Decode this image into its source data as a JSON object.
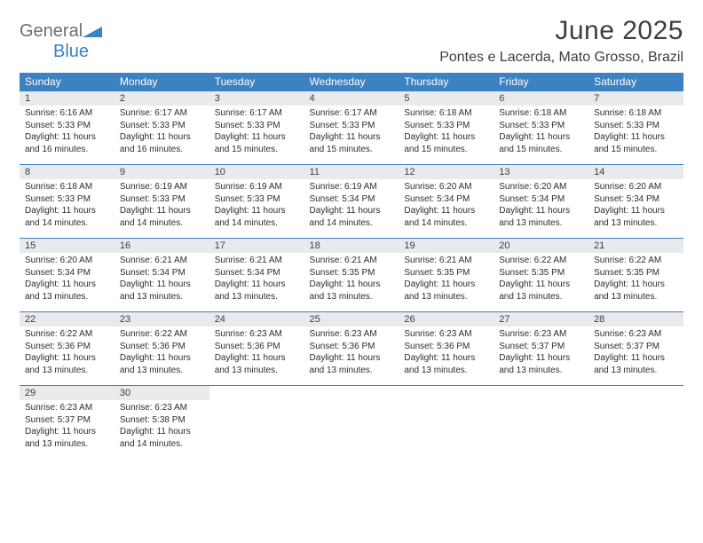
{
  "logo": {
    "text1": "General",
    "text2": "Blue"
  },
  "title": "June 2025",
  "location": "Pontes e Lacerda, Mato Grosso, Brazil",
  "colors": {
    "header_bg": "#3c81c2",
    "header_text": "#ffffff",
    "daynum_bg": "#e9eaeb",
    "border": "#3c81c2",
    "text": "#2b2d2f",
    "logo_gray": "#6b6f73",
    "logo_blue": "#3c81c2"
  },
  "weekdays": [
    "Sunday",
    "Monday",
    "Tuesday",
    "Wednesday",
    "Thursday",
    "Friday",
    "Saturday"
  ],
  "weeks": [
    [
      {
        "day": "1",
        "sunrise": "Sunrise: 6:16 AM",
        "sunset": "Sunset: 5:33 PM",
        "daylight": "Daylight: 11 hours and 16 minutes."
      },
      {
        "day": "2",
        "sunrise": "Sunrise: 6:17 AM",
        "sunset": "Sunset: 5:33 PM",
        "daylight": "Daylight: 11 hours and 16 minutes."
      },
      {
        "day": "3",
        "sunrise": "Sunrise: 6:17 AM",
        "sunset": "Sunset: 5:33 PM",
        "daylight": "Daylight: 11 hours and 15 minutes."
      },
      {
        "day": "4",
        "sunrise": "Sunrise: 6:17 AM",
        "sunset": "Sunset: 5:33 PM",
        "daylight": "Daylight: 11 hours and 15 minutes."
      },
      {
        "day": "5",
        "sunrise": "Sunrise: 6:18 AM",
        "sunset": "Sunset: 5:33 PM",
        "daylight": "Daylight: 11 hours and 15 minutes."
      },
      {
        "day": "6",
        "sunrise": "Sunrise: 6:18 AM",
        "sunset": "Sunset: 5:33 PM",
        "daylight": "Daylight: 11 hours and 15 minutes."
      },
      {
        "day": "7",
        "sunrise": "Sunrise: 6:18 AM",
        "sunset": "Sunset: 5:33 PM",
        "daylight": "Daylight: 11 hours and 15 minutes."
      }
    ],
    [
      {
        "day": "8",
        "sunrise": "Sunrise: 6:18 AM",
        "sunset": "Sunset: 5:33 PM",
        "daylight": "Daylight: 11 hours and 14 minutes."
      },
      {
        "day": "9",
        "sunrise": "Sunrise: 6:19 AM",
        "sunset": "Sunset: 5:33 PM",
        "daylight": "Daylight: 11 hours and 14 minutes."
      },
      {
        "day": "10",
        "sunrise": "Sunrise: 6:19 AM",
        "sunset": "Sunset: 5:33 PM",
        "daylight": "Daylight: 11 hours and 14 minutes."
      },
      {
        "day": "11",
        "sunrise": "Sunrise: 6:19 AM",
        "sunset": "Sunset: 5:34 PM",
        "daylight": "Daylight: 11 hours and 14 minutes."
      },
      {
        "day": "12",
        "sunrise": "Sunrise: 6:20 AM",
        "sunset": "Sunset: 5:34 PM",
        "daylight": "Daylight: 11 hours and 14 minutes."
      },
      {
        "day": "13",
        "sunrise": "Sunrise: 6:20 AM",
        "sunset": "Sunset: 5:34 PM",
        "daylight": "Daylight: 11 hours and 13 minutes."
      },
      {
        "day": "14",
        "sunrise": "Sunrise: 6:20 AM",
        "sunset": "Sunset: 5:34 PM",
        "daylight": "Daylight: 11 hours and 13 minutes."
      }
    ],
    [
      {
        "day": "15",
        "sunrise": "Sunrise: 6:20 AM",
        "sunset": "Sunset: 5:34 PM",
        "daylight": "Daylight: 11 hours and 13 minutes."
      },
      {
        "day": "16",
        "sunrise": "Sunrise: 6:21 AM",
        "sunset": "Sunset: 5:34 PM",
        "daylight": "Daylight: 11 hours and 13 minutes."
      },
      {
        "day": "17",
        "sunrise": "Sunrise: 6:21 AM",
        "sunset": "Sunset: 5:34 PM",
        "daylight": "Daylight: 11 hours and 13 minutes."
      },
      {
        "day": "18",
        "sunrise": "Sunrise: 6:21 AM",
        "sunset": "Sunset: 5:35 PM",
        "daylight": "Daylight: 11 hours and 13 minutes."
      },
      {
        "day": "19",
        "sunrise": "Sunrise: 6:21 AM",
        "sunset": "Sunset: 5:35 PM",
        "daylight": "Daylight: 11 hours and 13 minutes."
      },
      {
        "day": "20",
        "sunrise": "Sunrise: 6:22 AM",
        "sunset": "Sunset: 5:35 PM",
        "daylight": "Daylight: 11 hours and 13 minutes."
      },
      {
        "day": "21",
        "sunrise": "Sunrise: 6:22 AM",
        "sunset": "Sunset: 5:35 PM",
        "daylight": "Daylight: 11 hours and 13 minutes."
      }
    ],
    [
      {
        "day": "22",
        "sunrise": "Sunrise: 6:22 AM",
        "sunset": "Sunset: 5:36 PM",
        "daylight": "Daylight: 11 hours and 13 minutes."
      },
      {
        "day": "23",
        "sunrise": "Sunrise: 6:22 AM",
        "sunset": "Sunset: 5:36 PM",
        "daylight": "Daylight: 11 hours and 13 minutes."
      },
      {
        "day": "24",
        "sunrise": "Sunrise: 6:23 AM",
        "sunset": "Sunset: 5:36 PM",
        "daylight": "Daylight: 11 hours and 13 minutes."
      },
      {
        "day": "25",
        "sunrise": "Sunrise: 6:23 AM",
        "sunset": "Sunset: 5:36 PM",
        "daylight": "Daylight: 11 hours and 13 minutes."
      },
      {
        "day": "26",
        "sunrise": "Sunrise: 6:23 AM",
        "sunset": "Sunset: 5:36 PM",
        "daylight": "Daylight: 11 hours and 13 minutes."
      },
      {
        "day": "27",
        "sunrise": "Sunrise: 6:23 AM",
        "sunset": "Sunset: 5:37 PM",
        "daylight": "Daylight: 11 hours and 13 minutes."
      },
      {
        "day": "28",
        "sunrise": "Sunrise: 6:23 AM",
        "sunset": "Sunset: 5:37 PM",
        "daylight": "Daylight: 11 hours and 13 minutes."
      }
    ],
    [
      {
        "day": "29",
        "sunrise": "Sunrise: 6:23 AM",
        "sunset": "Sunset: 5:37 PM",
        "daylight": "Daylight: 11 hours and 13 minutes."
      },
      {
        "day": "30",
        "sunrise": "Sunrise: 6:23 AM",
        "sunset": "Sunset: 5:38 PM",
        "daylight": "Daylight: 11 hours and 14 minutes."
      },
      null,
      null,
      null,
      null,
      null
    ]
  ]
}
